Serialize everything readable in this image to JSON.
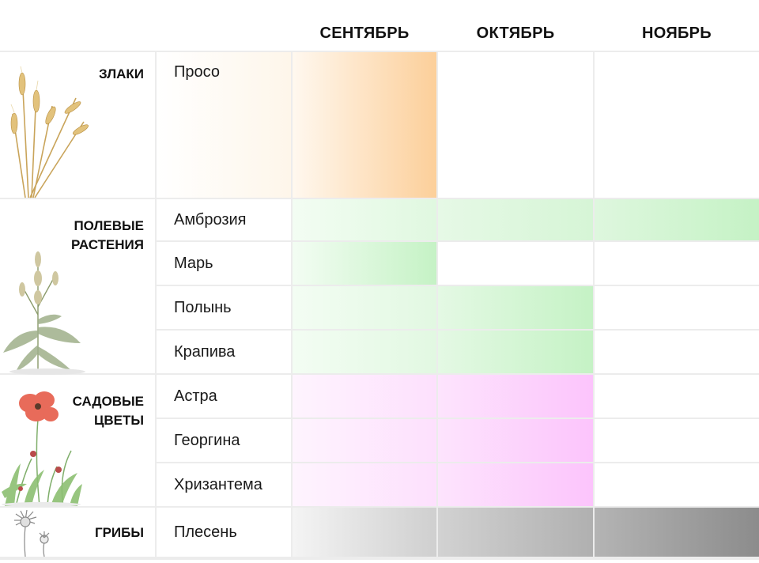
{
  "header": {
    "months": [
      "СЕНТЯБРЬ",
      "ОКТЯБРЬ",
      "НОЯБРЬ"
    ]
  },
  "groups": [
    {
      "label": "ЗЛАКИ",
      "illustration": "wheat-illustration",
      "plants": [
        "Просо"
      ]
    },
    {
      "label": "ПОЛЕВЫЕ РАСТЕНИЯ",
      "label_lines": [
        "ПОЛЕВЫЕ",
        "РАСТЕНИЯ"
      ],
      "illustration": "weed-illustration",
      "plants": [
        "Амброзия",
        "Марь",
        "Полынь",
        "Крапива"
      ]
    },
    {
      "label": "САДОВЫЕ ЦВЕТЫ",
      "label_lines": [
        "САДОВЫЕ",
        "ЦВЕТЫ"
      ],
      "illustration": "poppy-illustration",
      "plants": [
        "Астра",
        "Георгина",
        "Хризантема"
      ]
    },
    {
      "label": "ГРИБЫ",
      "illustration": "mold-illustration",
      "plants": [
        "Плесень"
      ]
    }
  ],
  "colors": {
    "grain": "#fccf9a",
    "field": "#c5f2c5",
    "garden": "#fcc4fc",
    "mold_sep": "#cfcfcf",
    "mold_oct": "#b0b0b0",
    "mold_nov": "#8c8c8c"
  },
  "activity": {
    "Просо": [
      "high",
      "none",
      "none"
    ],
    "Амброзия": [
      "medium",
      "medium",
      "medium"
    ],
    "Марь": [
      "medium",
      "none",
      "none"
    ],
    "Полынь": [
      "medium",
      "medium",
      "none"
    ],
    "Крапива": [
      "medium",
      "medium",
      "none"
    ],
    "Астра": [
      "medium",
      "high",
      "none"
    ],
    "Георгина": [
      "medium",
      "high",
      "none"
    ],
    "Хризантема": [
      "medium",
      "high",
      "none"
    ],
    "Плесень": [
      "low",
      "medium",
      "high"
    ]
  }
}
